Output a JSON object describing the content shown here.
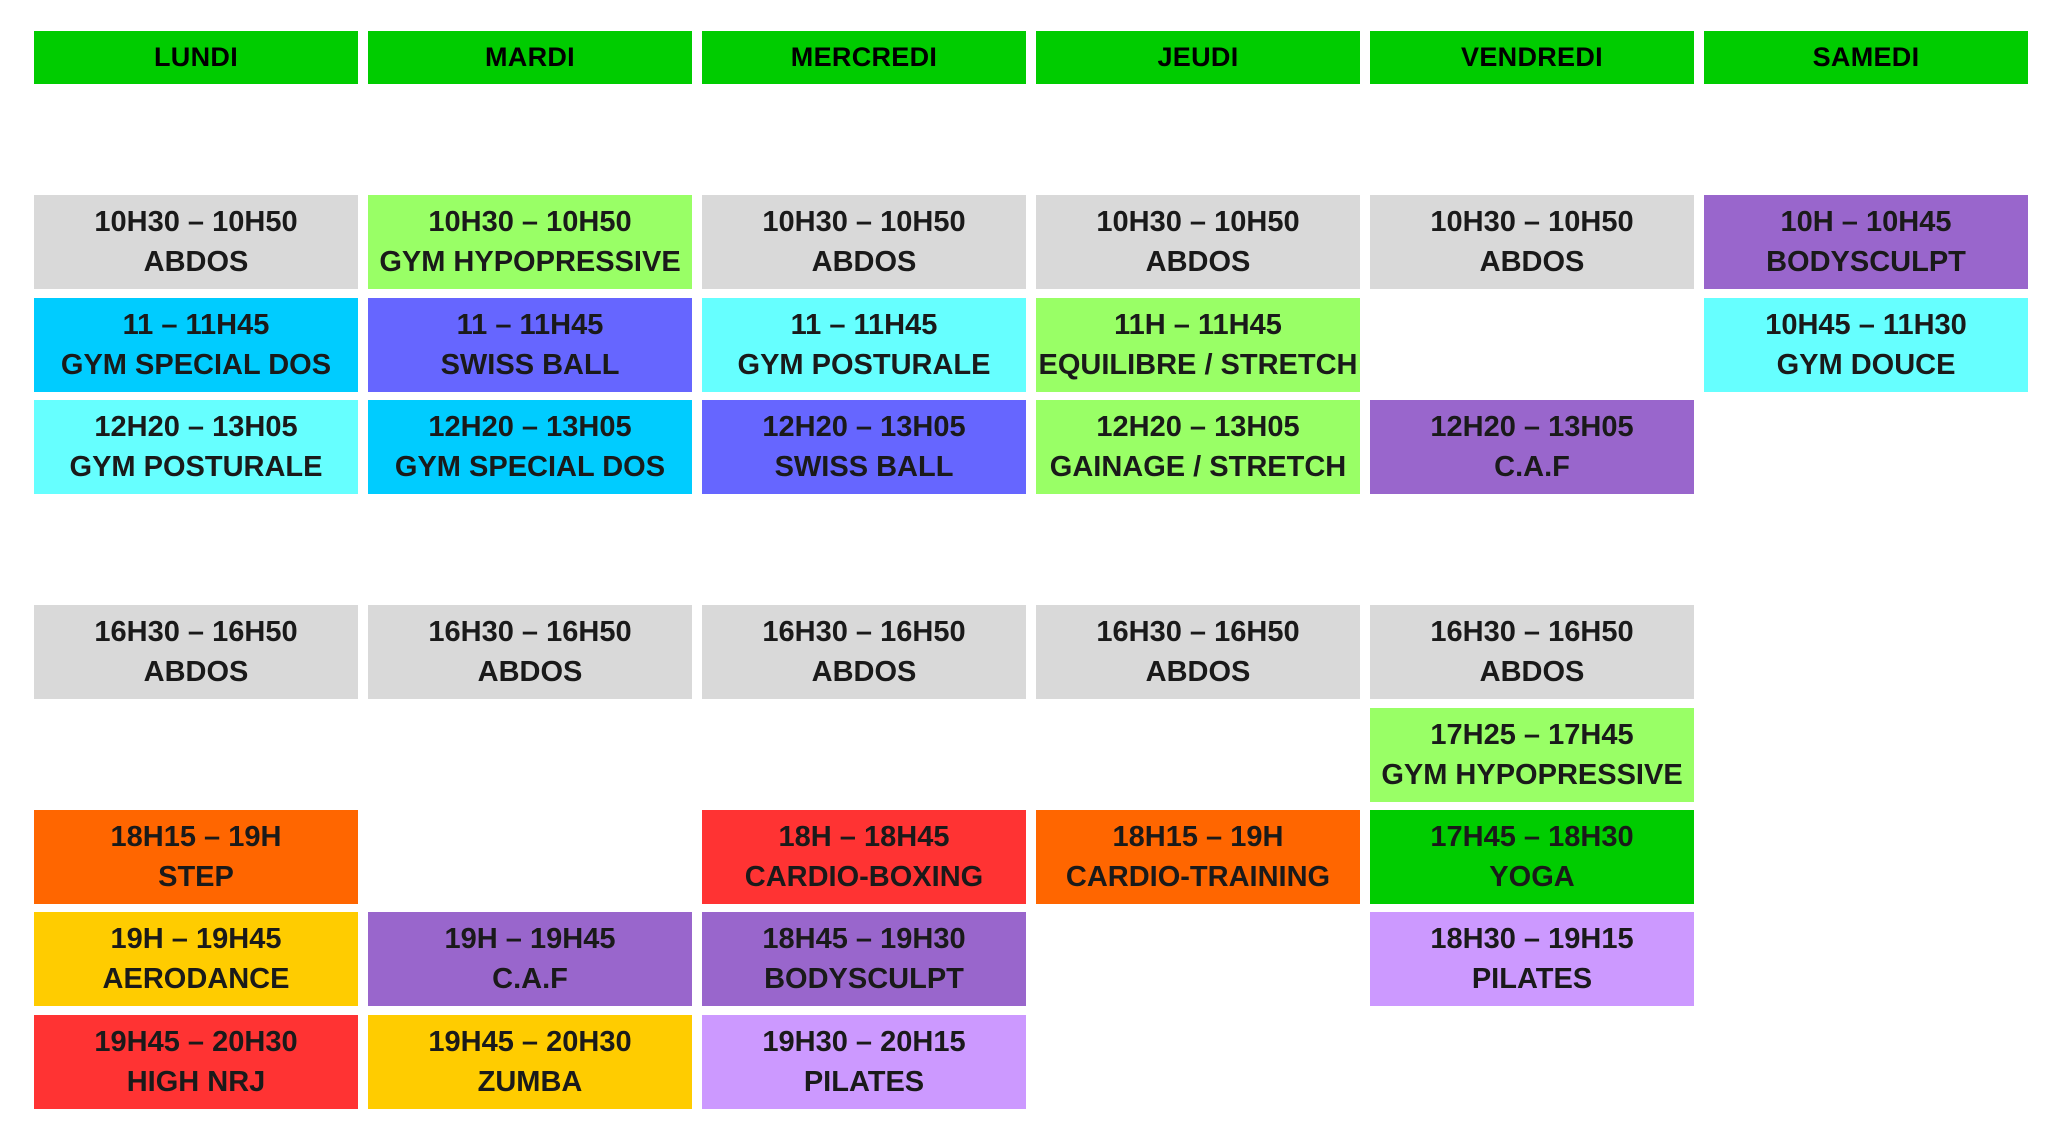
{
  "colors": {
    "header": "#00cc00",
    "gray": "#d9d9d9",
    "lime": "#99ff66",
    "sky": "#00ccff",
    "cyan": "#66ffff",
    "blue": "#6666ff",
    "purple": "#9966cc",
    "lilac": "#cc99ff",
    "orange": "#ff6600",
    "red": "#ff3333",
    "yellow": "#ffcc00",
    "green": "#00cc00"
  },
  "days": [
    "LUNDI",
    "MARDI",
    "MERCREDI",
    "JEUDI",
    "VENDREDI",
    "SAMEDI"
  ],
  "sessions": [
    {
      "day": 0,
      "slot": 0,
      "time": "10H30 – 10H50",
      "name": "ABDOS",
      "color": "gray"
    },
    {
      "day": 1,
      "slot": 0,
      "time": "10H30 – 10H50",
      "name": "GYM HYPOPRESSIVE",
      "color": "lime"
    },
    {
      "day": 2,
      "slot": 0,
      "time": "10H30 – 10H50",
      "name": "ABDOS",
      "color": "gray"
    },
    {
      "day": 3,
      "slot": 0,
      "time": "10H30 – 10H50",
      "name": "ABDOS",
      "color": "gray"
    },
    {
      "day": 4,
      "slot": 0,
      "time": "10H30 – 10H50",
      "name": "ABDOS",
      "color": "gray"
    },
    {
      "day": 5,
      "slot": 0,
      "time": "10H – 10H45",
      "name": "BODYSCULPT",
      "color": "purple"
    },
    {
      "day": 0,
      "slot": 1,
      "time": "11 – 11H45",
      "name": "GYM SPECIAL DOS",
      "color": "sky"
    },
    {
      "day": 1,
      "slot": 1,
      "time": "11 – 11H45",
      "name": "SWISS BALL",
      "color": "blue"
    },
    {
      "day": 2,
      "slot": 1,
      "time": "11 – 11H45",
      "name": "GYM POSTURALE",
      "color": "cyan"
    },
    {
      "day": 3,
      "slot": 1,
      "time": "11H – 11H45",
      "name": "EQUILIBRE / STRETCH",
      "color": "lime"
    },
    {
      "day": 5,
      "slot": 1,
      "time": "10H45 – 11H30",
      "name": "GYM DOUCE",
      "color": "cyan"
    },
    {
      "day": 0,
      "slot": 2,
      "time": "12H20 – 13H05",
      "name": "GYM POSTURALE",
      "color": "cyan"
    },
    {
      "day": 1,
      "slot": 2,
      "time": "12H20 – 13H05",
      "name": "GYM SPECIAL DOS",
      "color": "sky"
    },
    {
      "day": 2,
      "slot": 2,
      "time": "12H20 – 13H05",
      "name": "SWISS BALL",
      "color": "blue"
    },
    {
      "day": 3,
      "slot": 2,
      "time": "12H20 – 13H05",
      "name": "GAINAGE / STRETCH",
      "color": "lime"
    },
    {
      "day": 4,
      "slot": 2,
      "time": "12H20 – 13H05",
      "name": "C.A.F",
      "color": "purple"
    },
    {
      "day": 0,
      "slot": 3,
      "time": "16H30 – 16H50",
      "name": "ABDOS",
      "color": "gray"
    },
    {
      "day": 1,
      "slot": 3,
      "time": "16H30 – 16H50",
      "name": "ABDOS",
      "color": "gray"
    },
    {
      "day": 2,
      "slot": 3,
      "time": "16H30 – 16H50",
      "name": "ABDOS",
      "color": "gray"
    },
    {
      "day": 3,
      "slot": 3,
      "time": "16H30 – 16H50",
      "name": "ABDOS",
      "color": "gray"
    },
    {
      "day": 4,
      "slot": 3,
      "time": "16H30 – 16H50",
      "name": "ABDOS",
      "color": "gray"
    },
    {
      "day": 4,
      "slot": 4,
      "time": "17H25 – 17H45",
      "name": "GYM HYPOPRESSIVE",
      "color": "lime"
    },
    {
      "day": 0,
      "slot": 5,
      "time": "18H15 – 19H",
      "name": "STEP",
      "color": "orange"
    },
    {
      "day": 2,
      "slot": 5,
      "time": "18H – 18H45",
      "name": "CARDIO-BOXING",
      "color": "red"
    },
    {
      "day": 3,
      "slot": 5,
      "time": "18H15 – 19H",
      "name": "CARDIO-TRAINING",
      "color": "orange"
    },
    {
      "day": 4,
      "slot": 5,
      "time": "17H45 – 18H30",
      "name": "YOGA",
      "color": "green"
    },
    {
      "day": 0,
      "slot": 6,
      "time": "19H – 19H45",
      "name": "AERODANCE",
      "color": "yellow"
    },
    {
      "day": 1,
      "slot": 6,
      "time": "19H – 19H45",
      "name": "C.A.F",
      "color": "purple"
    },
    {
      "day": 2,
      "slot": 6,
      "time": "18H45 – 19H30",
      "name": "BODYSCULPT",
      "color": "purple"
    },
    {
      "day": 4,
      "slot": 6,
      "time": "18H30 – 19H15",
      "name": "PILATES",
      "color": "lilac"
    },
    {
      "day": 0,
      "slot": 7,
      "time": "19H45 – 20H30",
      "name": "HIGH NRJ",
      "color": "red"
    },
    {
      "day": 1,
      "slot": 7,
      "time": "19H45 – 20H30",
      "name": "ZUMBA",
      "color": "yellow"
    },
    {
      "day": 2,
      "slot": 7,
      "time": "19H30 – 20H15",
      "name": "PILATES",
      "color": "lilac"
    }
  ]
}
